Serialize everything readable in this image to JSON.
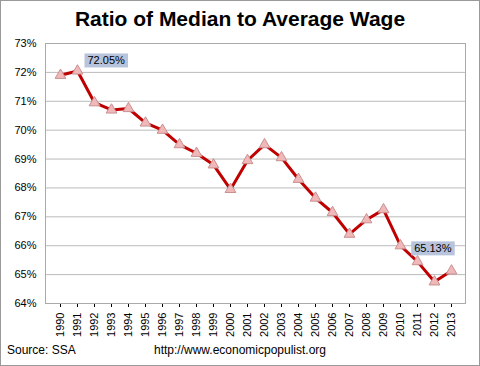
{
  "chart_data": {
    "type": "line",
    "title": "Ratio of Median to Average Wage",
    "source": "Source: SSA",
    "url": "http://www.economicpopulist.org",
    "categories": [
      "1990",
      "1991",
      "1992",
      "1993",
      "1994",
      "1995",
      "1996",
      "1997",
      "1998",
      "1999",
      "2000",
      "2001",
      "2002",
      "2003",
      "2004",
      "2005",
      "2006",
      "2007",
      "2008",
      "2009",
      "2010",
      "2011",
      "2012",
      "2013"
    ],
    "values": [
      71.9,
      72.05,
      70.95,
      70.7,
      70.75,
      70.25,
      70.0,
      69.5,
      69.2,
      68.8,
      67.95,
      68.95,
      69.5,
      69.05,
      68.3,
      67.65,
      67.15,
      66.4,
      66.9,
      67.25,
      66.0,
      65.45,
      64.75,
      65.13
    ],
    "color": "#c00000",
    "marker": "triangle",
    "annotations": [
      {
        "category": "1991",
        "value": 72.05,
        "label": "72.05%"
      },
      {
        "category": "2013",
        "value": 65.13,
        "label": "65.13%"
      }
    ],
    "ylim": [
      64,
      73
    ],
    "yticks": [
      {
        "value": 64,
        "label": "64%"
      },
      {
        "value": 65,
        "label": "65%"
      },
      {
        "value": 66,
        "label": "66%"
      },
      {
        "value": 67,
        "label": "67%"
      },
      {
        "value": 68,
        "label": "68%"
      },
      {
        "value": 69,
        "label": "69%"
      },
      {
        "value": 70,
        "label": "70%"
      },
      {
        "value": 71,
        "label": "71%"
      },
      {
        "value": 72,
        "label": "72%"
      },
      {
        "value": 73,
        "label": "73%"
      }
    ],
    "grid": true
  }
}
